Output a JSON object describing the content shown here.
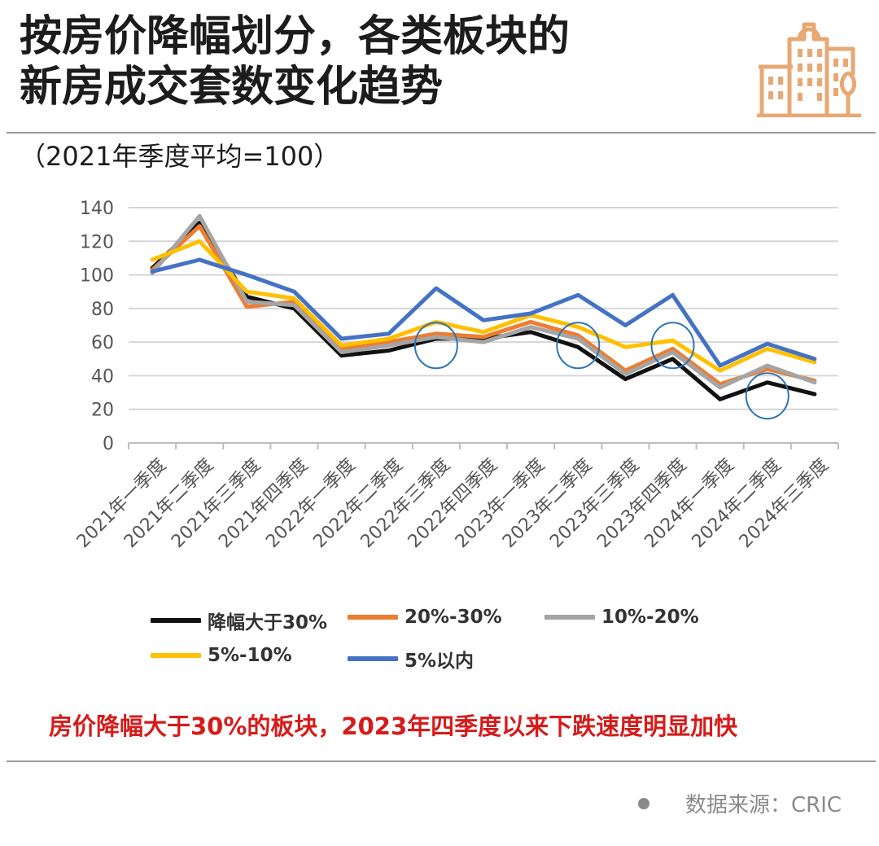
{
  "header": {
    "title_line1": "按房价降幅划分，各类板块的",
    "title_line2": "新房成交套数变化趋势",
    "subtitle": "（2021年季度平均=100）",
    "logo_icon": "city-buildings-icon",
    "logo_color": "#e8a874"
  },
  "chart_data": {
    "type": "line",
    "ylim": [
      0,
      140
    ],
    "yticks": [
      0,
      20,
      40,
      60,
      80,
      100,
      120,
      140
    ],
    "grid": true,
    "legend_position": "bottom",
    "categories": [
      "2021年一季度",
      "2021年二季度",
      "2021年三季度",
      "2021年四季度",
      "2022年一季度",
      "2022年二季度",
      "2022年三季度",
      "2022年四季度",
      "2023年一季度",
      "2023年二季度",
      "2023年三季度",
      "2023年四季度",
      "2024年一季度",
      "2024年二季度",
      "2024年三季度"
    ],
    "series": [
      {
        "name": "降幅大于30%",
        "color": "#111111",
        "values": [
          104,
          131,
          87,
          80,
          52,
          55,
          62,
          62,
          66,
          57,
          38,
          50,
          26,
          36,
          29
        ]
      },
      {
        "name": "20%-30%",
        "color": "#ed7d31",
        "values": [
          103,
          129,
          81,
          84,
          56,
          60,
          65,
          63,
          72,
          64,
          43,
          56,
          35,
          44,
          37
        ]
      },
      {
        "name": "10%-20%",
        "color": "#a5a5a5",
        "values": [
          101,
          135,
          84,
          82,
          54,
          58,
          63,
          60,
          69,
          62,
          41,
          54,
          33,
          46,
          36
        ]
      },
      {
        "name": "5%-10%",
        "color": "#ffc000",
        "values": [
          109,
          120,
          90,
          86,
          58,
          62,
          72,
          66,
          76,
          69,
          57,
          61,
          43,
          56,
          48
        ]
      },
      {
        "name": "5%以内",
        "color": "#4472c4",
        "values": [
          102,
          109,
          100,
          90,
          62,
          65,
          92,
          73,
          77,
          88,
          70,
          88,
          46,
          59,
          50
        ]
      }
    ],
    "highlight_circles": [
      {
        "category": "2022年三季度",
        "value": 58
      },
      {
        "category": "2023年二季度",
        "value": 58
      },
      {
        "category": "2023年四季度",
        "value": 58
      },
      {
        "category": "2024年二季度",
        "value": 28
      }
    ]
  },
  "note": "房价降幅大于30%的板块，2023年四季度以来下跌速度明显加快",
  "source": "数据来源：CRIC"
}
